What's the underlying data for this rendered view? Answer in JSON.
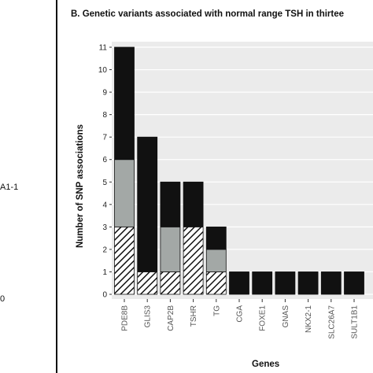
{
  "left_fragment": {
    "lines": [
      "A1-1",
      "0"
    ]
  },
  "chart_data": {
    "type": "bar",
    "title": "B. Genetic variants associated with normal range TSH in thirtee",
    "xlabel": "Genes",
    "ylabel": "Number of SNP associations",
    "ylim": [
      0,
      11
    ],
    "yticks": [
      0,
      1,
      2,
      3,
      4,
      5,
      6,
      7,
      8,
      9,
      10,
      11
    ],
    "grid": true,
    "categories": [
      "PDE8B",
      "GLIS3",
      "CAP2B",
      "TSHR",
      "TG",
      "CGA",
      "FOXE1",
      "GNAS",
      "NKX2-1",
      "SLC26A7",
      "SULT1B1"
    ],
    "series": [
      {
        "pattern": "hatched",
        "color": "#111111",
        "values": [
          3,
          1,
          1,
          3,
          1,
          0,
          0,
          0,
          0,
          0,
          0
        ]
      },
      {
        "pattern": "solid",
        "color": "#a3a8a6",
        "values": [
          3,
          0,
          2,
          0,
          1,
          0,
          0,
          0,
          0,
          0,
          0
        ]
      },
      {
        "pattern": "solid",
        "color": "#111111",
        "values": [
          5,
          6,
          2,
          2,
          1,
          1,
          1,
          1,
          1,
          1,
          1
        ]
      }
    ]
  }
}
